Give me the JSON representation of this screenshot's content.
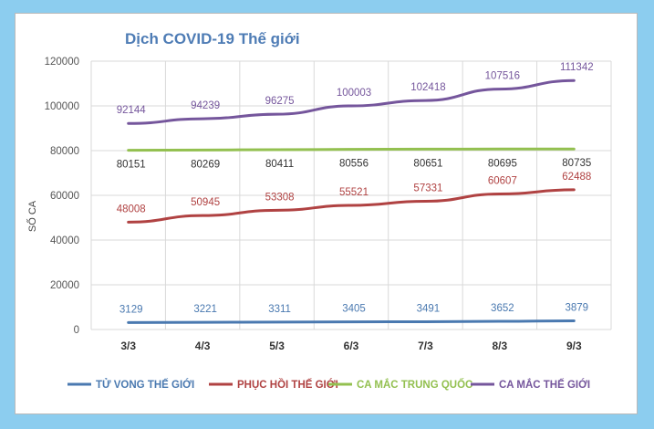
{
  "chart_data": {
    "type": "line",
    "title": "Dịch COVID-19 Thế giới",
    "ylabel": "SỐ CA",
    "xlabel": "",
    "ylim": [
      0,
      120000
    ],
    "yticks": [
      0,
      20000,
      40000,
      60000,
      80000,
      100000,
      120000
    ],
    "grid": true,
    "legend_position": "bottom",
    "categories": [
      "3/3",
      "4/3",
      "5/3",
      "6/3",
      "7/3",
      "8/3",
      "9/3"
    ],
    "series": [
      {
        "name": "TỬ VONG THẾ GIỚI",
        "color": "#4a79b0",
        "values": [
          3129,
          3221,
          3311,
          3405,
          3491,
          3652,
          3879
        ]
      },
      {
        "name": "PHỤC HỒI THẾ GIỚI",
        "color": "#b04242",
        "values": [
          48008,
          50945,
          53308,
          55521,
          57331,
          60607,
          62488
        ]
      },
      {
        "name": "CA MẮC TRUNG QUỐC",
        "color": "#93c050",
        "values": [
          80151,
          80269,
          80411,
          80556,
          80651,
          80695,
          80735
        ]
      },
      {
        "name": "CA MẮC THẾ GIỚI",
        "color": "#75569c",
        "values": [
          92144,
          94239,
          96275,
          100003,
          102418,
          107516,
          111342
        ]
      }
    ]
  }
}
